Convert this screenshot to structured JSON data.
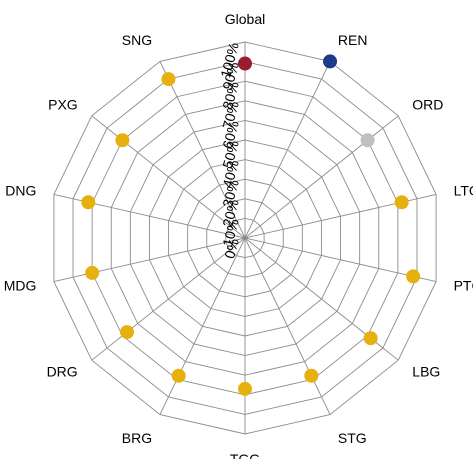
{
  "chart_data": {
    "type": "radar",
    "title": "",
    "categories": [
      "Global",
      "REN",
      "ORD",
      "LTG",
      "PTG",
      "LBG",
      "STG",
      "TGG",
      "BRG",
      "DRG",
      "MDG",
      "DNG",
      "PXG",
      "SNG"
    ],
    "tick_labels": [
      "0%",
      "10%",
      "20%",
      "30%",
      "40%",
      "50%",
      "60%",
      "70%",
      "80%",
      "90%",
      "100%"
    ],
    "range": [
      0,
      100
    ],
    "grid": true,
    "series": [
      {
        "values": [
          89,
          100,
          80,
          82,
          88,
          82,
          78,
          77,
          78,
          77,
          80,
          82,
          80,
          90
        ],
        "point_colors": [
          "#9b1b30",
          "#1f3a8a",
          "#bfbfbf",
          "#e6b00f",
          "#e6b00f",
          "#e6b00f",
          "#e6b00f",
          "#e6b00f",
          "#e6b00f",
          "#e6b00f",
          "#e6b00f",
          "#e6b00f",
          "#e6b00f",
          "#e6b00f"
        ]
      }
    ]
  }
}
